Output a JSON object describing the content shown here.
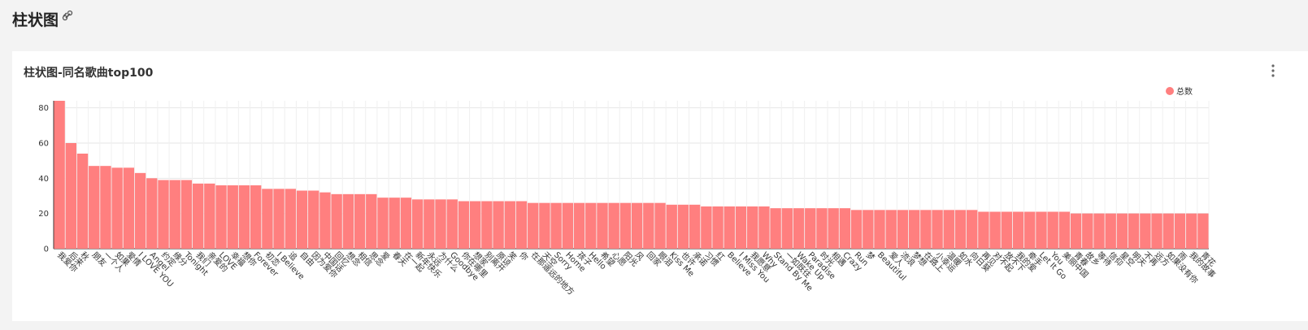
{
  "header": {
    "title": "柱状图"
  },
  "chart_data": {
    "type": "bar",
    "title": "柱状图-同名歌曲top100",
    "categories": [
      "我爱你",
      "后来",
      "秋",
      "朋友",
      "一个人",
      "如果",
      "爱情",
      "I LOVE YOU",
      "Angel",
      "约定",
      "缘分",
      "Tonight",
      "我们",
      "亲爱的",
      "LOVE",
      "幸福",
      "想你",
      "Forever",
      "初恋",
      "I Believe",
      "追",
      "自由",
      "因为爱你",
      "中国话",
      "回忆",
      "想念",
      "相信",
      "思念",
      "爱",
      "春天",
      "在一起",
      "新年快乐",
      "永远",
      "为什么",
      "Goodbye",
      "你在哪里",
      "想家",
      "别离开",
      "原谅",
      "笑",
      "你",
      "在那遥远的地方",
      "天空",
      "Sorry",
      "Home",
      "孩子",
      "Hello",
      "希望",
      "心愿",
      "阳光",
      "风",
      "回家",
      "眼泪",
      "Kiss Me",
      "也许",
      "承诺",
      "习惯",
      "红",
      "Believe",
      "I Miss You",
      "我愿意",
      "Why",
      "Stand By Me",
      "一如既往",
      "Wake Up",
      "Paradise",
      "时光",
      "相遇",
      "Crazy",
      "Run",
      "梦",
      "Beautiful",
      "爱人",
      "流浪",
      "梦想",
      "在路上",
      "小幸运",
      "温暖",
      "如水",
      "向日葵",
      "再见",
      "对不起",
      "放不下",
      "我的爱",
      "牵手",
      "Let It Go",
      "You",
      "美丽中国",
      "青春",
      "故乡",
      "等待",
      "信仰",
      "星空",
      "明天",
      "不再",
      "远方",
      "如果没有你",
      "雨",
      "我的故事",
      "青花"
    ],
    "series": [
      {
        "name": "总数",
        "color": "#ff7f7f",
        "values": [
          84,
          60,
          54,
          47,
          47,
          46,
          46,
          43,
          40,
          39,
          39,
          39,
          37,
          37,
          36,
          36,
          36,
          36,
          34,
          34,
          34,
          33,
          33,
          32,
          31,
          31,
          31,
          31,
          29,
          29,
          29,
          28,
          28,
          28,
          28,
          27,
          27,
          27,
          27,
          27,
          27,
          26,
          26,
          26,
          26,
          26,
          26,
          26,
          26,
          26,
          26,
          26,
          26,
          25,
          25,
          25,
          24,
          24,
          24,
          24,
          24,
          24,
          23,
          23,
          23,
          23,
          23,
          23,
          23,
          22,
          22,
          22,
          22,
          22,
          22,
          22,
          22,
          22,
          22,
          22,
          21,
          21,
          21,
          21,
          21,
          21,
          21,
          21,
          20,
          20,
          20,
          20,
          20,
          20,
          20,
          20,
          20,
          20,
          20,
          20
        ]
      }
    ],
    "ylim": [
      0,
      84
    ],
    "yticks": [
      0,
      20,
      40,
      60,
      80
    ],
    "grid": true,
    "legend": "top-right"
  }
}
